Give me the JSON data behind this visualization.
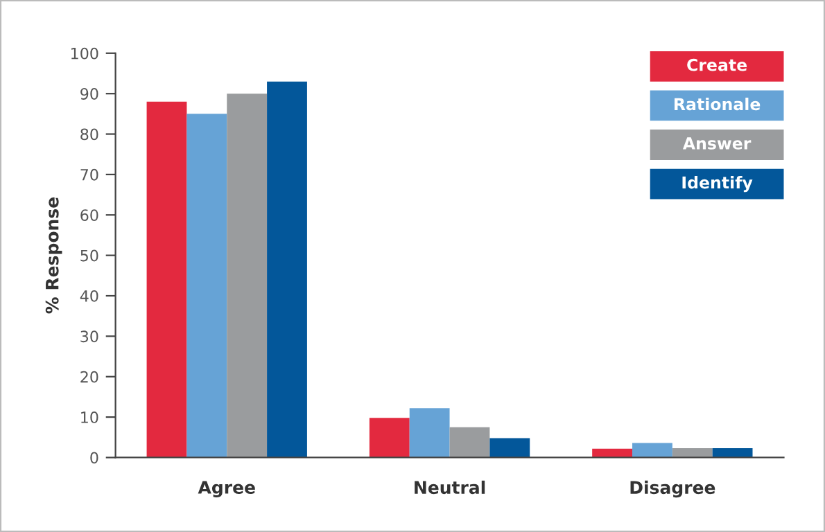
{
  "chart_data": {
    "type": "bar",
    "ylabel": "% Response",
    "categories": [
      "Agree",
      "Neutral",
      "Disagree"
    ],
    "series": [
      {
        "name": "Create",
        "color": "#e3293f",
        "values": [
          88,
          9.8,
          2.2
        ]
      },
      {
        "name": "Rationale",
        "color": "#66a3d6",
        "values": [
          85,
          12.2,
          3.6
        ]
      },
      {
        "name": "Answer",
        "color": "#9a9c9e",
        "values": [
          90,
          7.5,
          2.3
        ]
      },
      {
        "name": "Identify",
        "color": "#03579a",
        "values": [
          93,
          4.8,
          2.3
        ]
      }
    ],
    "ylim": [
      0,
      100
    ],
    "yticks": [
      0,
      10,
      20,
      30,
      40,
      50,
      60,
      70,
      80,
      90,
      100
    ],
    "grid": false,
    "legend": "top right"
  }
}
